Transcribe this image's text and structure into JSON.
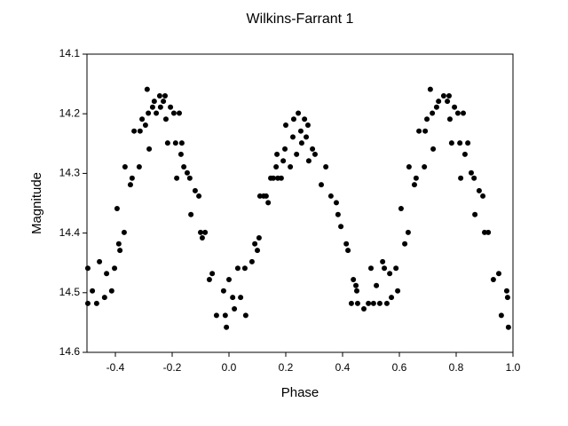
{
  "chart_data": {
    "type": "scatter",
    "title": "Wilkins-Farrant 1",
    "x_label": "Phase",
    "y_label": "Magnitude",
    "xlim": [
      -0.5,
      1.0
    ],
    "ylim": [
      14.1,
      14.6
    ],
    "y_inverted": true,
    "grid": false,
    "color": "#000000",
    "xticks": [
      -0.4,
      -0.2,
      {
        "value": 0,
        "label": "0.0"
      },
      0.2,
      0.4,
      0.6,
      0.8,
      {
        "value": 1,
        "label": "1.0"
      }
    ],
    "yticks": [
      14.1,
      14.2,
      14.3,
      14.4,
      14.5,
      14.6
    ],
    "x": [
      -0.497,
      -0.497,
      -0.481,
      -0.466,
      -0.456,
      -0.438,
      -0.431,
      -0.413,
      -0.403,
      -0.394,
      -0.388,
      -0.384,
      -0.369,
      -0.366,
      -0.347,
      -0.341,
      -0.334,
      -0.316,
      -0.313,
      -0.306,
      -0.294,
      -0.288,
      -0.284,
      -0.281,
      -0.269,
      -0.263,
      -0.256,
      -0.244,
      -0.241,
      -0.231,
      -0.225,
      -0.222,
      -0.216,
      -0.206,
      -0.194,
      -0.188,
      -0.184,
      -0.175,
      -0.169,
      -0.166,
      -0.159,
      -0.147,
      -0.138,
      -0.134,
      -0.119,
      -0.106,
      -0.1,
      -0.094,
      -0.084,
      -0.069,
      -0.059,
      -0.044,
      -0.019,
      -0.013,
      -0.009,
      0.0,
      0.013,
      0.019,
      0.031,
      0.041,
      0.056,
      0.059,
      0.081,
      0.091,
      0.1,
      0.106,
      0.109,
      0.122,
      0.131,
      0.138,
      0.147,
      0.156,
      0.166,
      0.169,
      0.172,
      0.184,
      0.191,
      0.197,
      0.2,
      0.216,
      0.225,
      0.228,
      0.238,
      0.244,
      0.253,
      0.256,
      0.266,
      0.272,
      0.278,
      0.281,
      0.294,
      0.303,
      0.325,
      0.341,
      0.359,
      0.378,
      0.384,
      0.394,
      0.413,
      0.419,
      0.438,
      0.447,
      0.45,
      0.431,
      0.453,
      0.475,
      0.491,
      0.5,
      0.509,
      0.519,
      0.531,
      0.541,
      0.547,
      0.556,
      0.566,
      0.572,
      0.588,
      0.594,
      0.606,
      0.619,
      0.631,
      0.634,
      0.653,
      0.659,
      0.669,
      0.688,
      0.691,
      0.697,
      0.709,
      0.716,
      0.719,
      0.731,
      0.738,
      0.756,
      0.769,
      0.775,
      0.778,
      0.784,
      0.794,
      0.806,
      0.813,
      0.816,
      0.825,
      0.831,
      0.841,
      0.853,
      0.863,
      0.866,
      0.881,
      0.894,
      0.9,
      0.913,
      0.931,
      0.95,
      0.959,
      0.978,
      0.984,
      0.981
    ],
    "values": [
      14.459,
      14.518,
      14.497,
      14.518,
      14.448,
      14.508,
      14.468,
      14.497,
      14.459,
      14.359,
      14.418,
      14.429,
      14.399,
      14.289,
      14.319,
      14.308,
      14.229,
      14.289,
      14.229,
      14.209,
      14.219,
      14.159,
      14.199,
      14.259,
      14.189,
      14.179,
      14.199,
      14.17,
      14.189,
      14.179,
      14.17,
      14.209,
      14.249,
      14.189,
      14.199,
      14.249,
      14.308,
      14.199,
      14.268,
      14.249,
      14.289,
      14.299,
      14.308,
      14.369,
      14.329,
      14.338,
      14.399,
      14.408,
      14.399,
      14.478,
      14.468,
      14.538,
      14.497,
      14.538,
      14.558,
      14.478,
      14.508,
      14.527,
      14.459,
      14.508,
      14.459,
      14.538,
      14.448,
      14.418,
      14.429,
      14.408,
      14.338,
      14.338,
      14.338,
      14.349,
      14.308,
      14.308,
      14.289,
      14.268,
      14.308,
      14.308,
      14.279,
      14.259,
      14.219,
      14.289,
      14.239,
      14.209,
      14.268,
      14.199,
      14.229,
      14.249,
      14.209,
      14.239,
      14.219,
      14.279,
      14.259,
      14.268,
      14.319,
      14.289,
      14.338,
      14.349,
      14.369,
      14.389,
      14.418,
      14.429,
      14.478,
      14.488,
      14.497,
      14.518,
      14.518,
      14.527,
      14.518,
      14.459,
      14.518,
      14.488,
      14.518,
      14.448,
      14.459,
      14.518,
      14.468,
      14.508,
      14.459,
      14.497,
      14.359,
      14.418,
      14.399,
      14.289,
      14.319,
      14.308,
      14.229,
      14.289,
      14.229,
      14.209,
      14.159,
      14.199,
      14.259,
      14.189,
      14.179,
      14.17,
      14.179,
      14.17,
      14.209,
      14.249,
      14.189,
      14.199,
      14.249,
      14.308,
      14.199,
      14.268,
      14.249,
      14.299,
      14.308,
      14.369,
      14.329,
      14.338,
      14.399,
      14.399,
      14.478,
      14.468,
      14.538,
      14.497,
      14.558,
      14.508
    ]
  }
}
